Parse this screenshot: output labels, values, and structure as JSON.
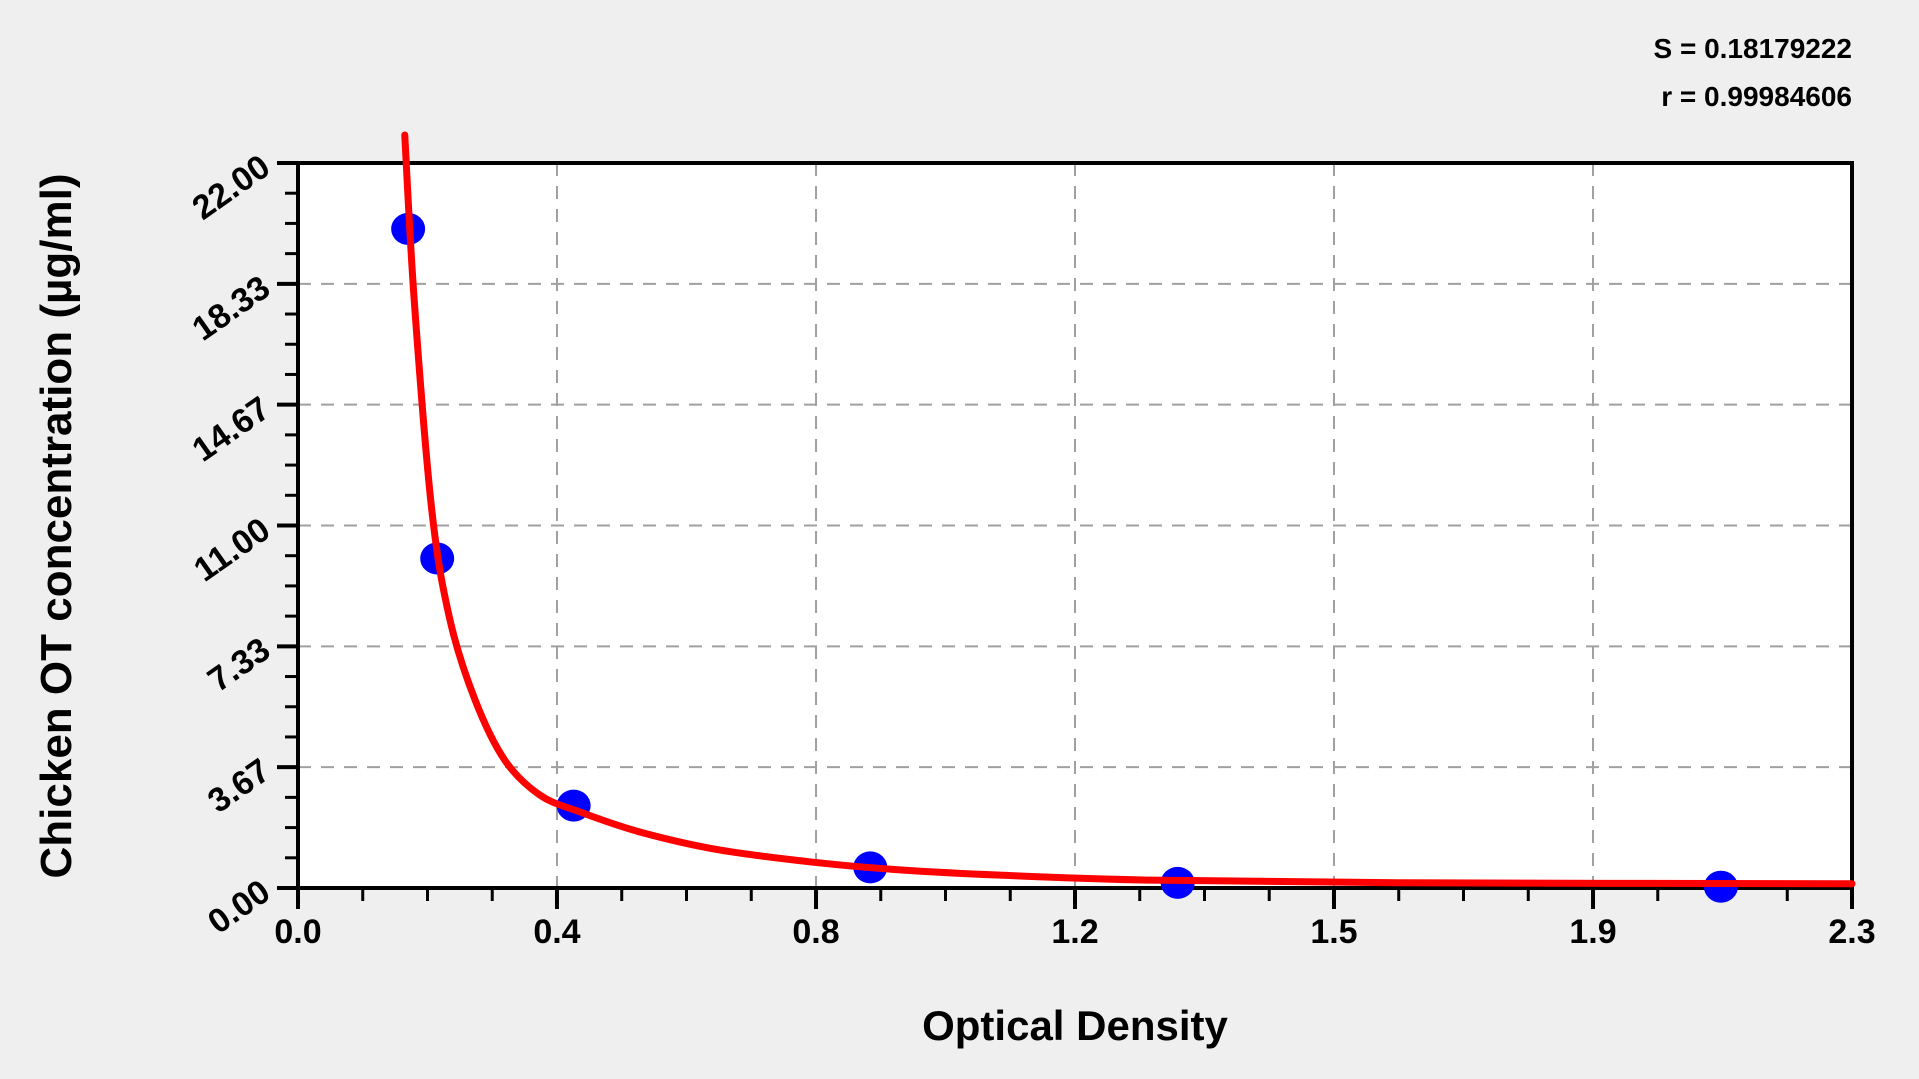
{
  "stats": {
    "s_line": "S = 0.18179222",
    "r_line": "r = 0.99984606"
  },
  "chart_data": {
    "type": "scatter",
    "title": "",
    "xlabel": "Optical Density",
    "ylabel": "Chicken OT concentration (µg/ml)",
    "xlim": [
      0,
      2.3
    ],
    "ylim": [
      0,
      22
    ],
    "x_ticks": {
      "values": [
        0,
        0.3833,
        0.7667,
        1.15,
        1.5333,
        1.9167,
        2.3
      ],
      "labels": [
        "0.0",
        "0.4",
        "0.8",
        "1.2",
        "1.5",
        "1.9",
        "2.3"
      ]
    },
    "y_ticks": {
      "values": [
        0,
        3.6667,
        7.3333,
        11,
        14.6667,
        18.3333,
        22
      ],
      "labels": [
        "0.00",
        "3.67",
        "7.33",
        "11.00",
        "14.67",
        "18.33",
        "22.00"
      ]
    },
    "minor_ticks_per_interval": 3,
    "grid": {
      "show": true,
      "style": "dashed",
      "color": "#a0a0a0"
    },
    "legend": null,
    "annotations": {
      "S": "0.18179222",
      "r": "0.99984606"
    },
    "series": [
      {
        "name": "standard-points",
        "type": "scatter",
        "color": "#0000ff",
        "x": [
          0.163,
          0.206,
          0.408,
          0.847,
          1.302,
          2.106
        ],
        "y": [
          20,
          10,
          2.5,
          0.625,
          0.156,
          0.039
        ]
      },
      {
        "name": "fitted-curve",
        "type": "line",
        "color": "#ff0000",
        "x": [
          0.158,
          0.172,
          0.198,
          0.225,
          0.262,
          0.306,
          0.358,
          0.417,
          0.506,
          0.625,
          0.773,
          0.891,
          1.039,
          1.261,
          1.631,
          2.3
        ],
        "y": [
          22.85,
          17.84,
          11.47,
          8.13,
          5.71,
          3.88,
          2.82,
          2.31,
          1.7,
          1.15,
          0.76,
          0.55,
          0.39,
          0.24,
          0.16,
          0.13
        ]
      }
    ],
    "colors": {
      "background": "#efefef",
      "plot_background": "#ffffff",
      "axis": "#000000",
      "curve": "#ff0000",
      "points": "#0000ff",
      "grid": "#a0a0a0"
    }
  }
}
